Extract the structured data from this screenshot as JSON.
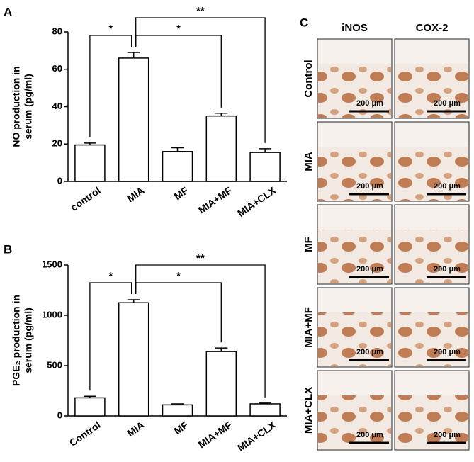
{
  "chart_data": [
    {
      "type": "bar",
      "panel": "A",
      "y_label": [
        "NO production in",
        "serum (pg/ml)"
      ],
      "categories": [
        "control",
        "MIA",
        "MF",
        "MIA+MF",
        "MIA+CLX"
      ],
      "values": [
        19.5,
        66,
        16,
        35,
        15.5
      ],
      "errors": [
        1,
        3,
        2,
        1.5,
        2
      ],
      "color": "#ffffff",
      "ylim": [
        0,
        80
      ],
      "yticks": [
        0,
        20,
        40,
        60,
        80
      ],
      "annotations": [
        {
          "text": "*",
          "pair": [
            0,
            1
          ]
        },
        {
          "text": "*",
          "pair": [
            1,
            3
          ]
        },
        {
          "text": "**",
          "pair": [
            1,
            4
          ]
        }
      ]
    },
    {
      "type": "bar",
      "panel": "B",
      "y_label": [
        "PGE₂ production in",
        "serum (pg/ml)"
      ],
      "categories": [
        "Control",
        "MIA",
        "MF",
        "MIA+MF",
        "MIA+CLX"
      ],
      "values": [
        180,
        1125,
        110,
        640,
        120
      ],
      "errors": [
        15,
        30,
        10,
        35,
        8
      ],
      "color": "#ffffff",
      "ylim": [
        0,
        1500
      ],
      "yticks": [
        0,
        500,
        1000,
        1500
      ],
      "annotations": [
        {
          "text": "*",
          "pair": [
            0,
            1
          ]
        },
        {
          "text": "*",
          "pair": [
            1,
            3
          ]
        },
        {
          "text": "**",
          "pair": [
            1,
            4
          ]
        }
      ]
    }
  ],
  "panel_c": {
    "label": "C",
    "columns": [
      "iNOS",
      "COX-2"
    ],
    "rows": [
      "Control",
      "MIA",
      "MF",
      "MIA+MF",
      "MIA+CLX"
    ],
    "scale_bar": "200 μm"
  }
}
